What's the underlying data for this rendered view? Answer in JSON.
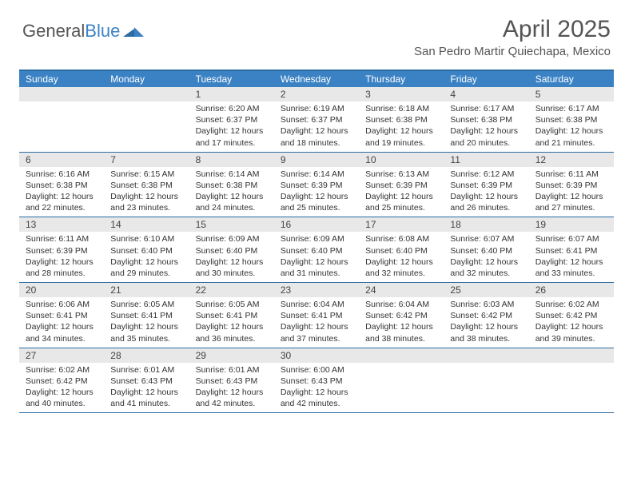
{
  "logo": {
    "part1": "General",
    "part2": "Blue"
  },
  "title": "April 2025",
  "location": "San Pedro Martir Quiechapa, Mexico",
  "colors": {
    "header_bg": "#3b82c4",
    "border": "#2b6ca3",
    "daynum_bg": "#e8e8e8",
    "text": "#333333"
  },
  "daynames": [
    "Sunday",
    "Monday",
    "Tuesday",
    "Wednesday",
    "Thursday",
    "Friday",
    "Saturday"
  ],
  "weeks": [
    [
      {
        "empty": true
      },
      {
        "empty": true
      },
      {
        "num": "1",
        "sunrise": "Sunrise: 6:20 AM",
        "sunset": "Sunset: 6:37 PM",
        "day1": "Daylight: 12 hours",
        "day2": "and 17 minutes."
      },
      {
        "num": "2",
        "sunrise": "Sunrise: 6:19 AM",
        "sunset": "Sunset: 6:37 PM",
        "day1": "Daylight: 12 hours",
        "day2": "and 18 minutes."
      },
      {
        "num": "3",
        "sunrise": "Sunrise: 6:18 AM",
        "sunset": "Sunset: 6:38 PM",
        "day1": "Daylight: 12 hours",
        "day2": "and 19 minutes."
      },
      {
        "num": "4",
        "sunrise": "Sunrise: 6:17 AM",
        "sunset": "Sunset: 6:38 PM",
        "day1": "Daylight: 12 hours",
        "day2": "and 20 minutes."
      },
      {
        "num": "5",
        "sunrise": "Sunrise: 6:17 AM",
        "sunset": "Sunset: 6:38 PM",
        "day1": "Daylight: 12 hours",
        "day2": "and 21 minutes."
      }
    ],
    [
      {
        "num": "6",
        "sunrise": "Sunrise: 6:16 AM",
        "sunset": "Sunset: 6:38 PM",
        "day1": "Daylight: 12 hours",
        "day2": "and 22 minutes."
      },
      {
        "num": "7",
        "sunrise": "Sunrise: 6:15 AM",
        "sunset": "Sunset: 6:38 PM",
        "day1": "Daylight: 12 hours",
        "day2": "and 23 minutes."
      },
      {
        "num": "8",
        "sunrise": "Sunrise: 6:14 AM",
        "sunset": "Sunset: 6:38 PM",
        "day1": "Daylight: 12 hours",
        "day2": "and 24 minutes."
      },
      {
        "num": "9",
        "sunrise": "Sunrise: 6:14 AM",
        "sunset": "Sunset: 6:39 PM",
        "day1": "Daylight: 12 hours",
        "day2": "and 25 minutes."
      },
      {
        "num": "10",
        "sunrise": "Sunrise: 6:13 AM",
        "sunset": "Sunset: 6:39 PM",
        "day1": "Daylight: 12 hours",
        "day2": "and 25 minutes."
      },
      {
        "num": "11",
        "sunrise": "Sunrise: 6:12 AM",
        "sunset": "Sunset: 6:39 PM",
        "day1": "Daylight: 12 hours",
        "day2": "and 26 minutes."
      },
      {
        "num": "12",
        "sunrise": "Sunrise: 6:11 AM",
        "sunset": "Sunset: 6:39 PM",
        "day1": "Daylight: 12 hours",
        "day2": "and 27 minutes."
      }
    ],
    [
      {
        "num": "13",
        "sunrise": "Sunrise: 6:11 AM",
        "sunset": "Sunset: 6:39 PM",
        "day1": "Daylight: 12 hours",
        "day2": "and 28 minutes."
      },
      {
        "num": "14",
        "sunrise": "Sunrise: 6:10 AM",
        "sunset": "Sunset: 6:40 PM",
        "day1": "Daylight: 12 hours",
        "day2": "and 29 minutes."
      },
      {
        "num": "15",
        "sunrise": "Sunrise: 6:09 AM",
        "sunset": "Sunset: 6:40 PM",
        "day1": "Daylight: 12 hours",
        "day2": "and 30 minutes."
      },
      {
        "num": "16",
        "sunrise": "Sunrise: 6:09 AM",
        "sunset": "Sunset: 6:40 PM",
        "day1": "Daylight: 12 hours",
        "day2": "and 31 minutes."
      },
      {
        "num": "17",
        "sunrise": "Sunrise: 6:08 AM",
        "sunset": "Sunset: 6:40 PM",
        "day1": "Daylight: 12 hours",
        "day2": "and 32 minutes."
      },
      {
        "num": "18",
        "sunrise": "Sunrise: 6:07 AM",
        "sunset": "Sunset: 6:40 PM",
        "day1": "Daylight: 12 hours",
        "day2": "and 32 minutes."
      },
      {
        "num": "19",
        "sunrise": "Sunrise: 6:07 AM",
        "sunset": "Sunset: 6:41 PM",
        "day1": "Daylight: 12 hours",
        "day2": "and 33 minutes."
      }
    ],
    [
      {
        "num": "20",
        "sunrise": "Sunrise: 6:06 AM",
        "sunset": "Sunset: 6:41 PM",
        "day1": "Daylight: 12 hours",
        "day2": "and 34 minutes."
      },
      {
        "num": "21",
        "sunrise": "Sunrise: 6:05 AM",
        "sunset": "Sunset: 6:41 PM",
        "day1": "Daylight: 12 hours",
        "day2": "and 35 minutes."
      },
      {
        "num": "22",
        "sunrise": "Sunrise: 6:05 AM",
        "sunset": "Sunset: 6:41 PM",
        "day1": "Daylight: 12 hours",
        "day2": "and 36 minutes."
      },
      {
        "num": "23",
        "sunrise": "Sunrise: 6:04 AM",
        "sunset": "Sunset: 6:41 PM",
        "day1": "Daylight: 12 hours",
        "day2": "and 37 minutes."
      },
      {
        "num": "24",
        "sunrise": "Sunrise: 6:04 AM",
        "sunset": "Sunset: 6:42 PM",
        "day1": "Daylight: 12 hours",
        "day2": "and 38 minutes."
      },
      {
        "num": "25",
        "sunrise": "Sunrise: 6:03 AM",
        "sunset": "Sunset: 6:42 PM",
        "day1": "Daylight: 12 hours",
        "day2": "and 38 minutes."
      },
      {
        "num": "26",
        "sunrise": "Sunrise: 6:02 AM",
        "sunset": "Sunset: 6:42 PM",
        "day1": "Daylight: 12 hours",
        "day2": "and 39 minutes."
      }
    ],
    [
      {
        "num": "27",
        "sunrise": "Sunrise: 6:02 AM",
        "sunset": "Sunset: 6:42 PM",
        "day1": "Daylight: 12 hours",
        "day2": "and 40 minutes."
      },
      {
        "num": "28",
        "sunrise": "Sunrise: 6:01 AM",
        "sunset": "Sunset: 6:43 PM",
        "day1": "Daylight: 12 hours",
        "day2": "and 41 minutes."
      },
      {
        "num": "29",
        "sunrise": "Sunrise: 6:01 AM",
        "sunset": "Sunset: 6:43 PM",
        "day1": "Daylight: 12 hours",
        "day2": "and 42 minutes."
      },
      {
        "num": "30",
        "sunrise": "Sunrise: 6:00 AM",
        "sunset": "Sunset: 6:43 PM",
        "day1": "Daylight: 12 hours",
        "day2": "and 42 minutes."
      },
      {
        "empty": true
      },
      {
        "empty": true
      },
      {
        "empty": true
      }
    ]
  ]
}
